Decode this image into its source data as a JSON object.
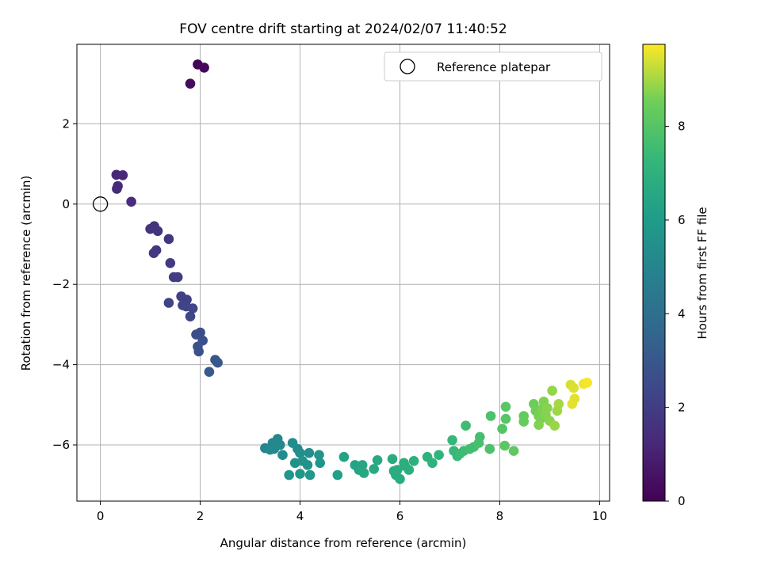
{
  "chart_data": {
    "type": "scatter",
    "title": "FOV centre drift starting at 2024/02/07 11:40:52",
    "xlabel": "Angular distance from reference (arcmin)",
    "ylabel": "Rotation from reference (arcmin)",
    "xlim": [
      -0.47,
      10.2
    ],
    "ylim": [
      -7.4,
      3.98
    ],
    "xticks": [
      0,
      2,
      4,
      6,
      8,
      10
    ],
    "xtick_labels": [
      "0",
      "2",
      "4",
      "6",
      "8",
      "10"
    ],
    "yticks": [
      2,
      0,
      -2,
      -4,
      -6
    ],
    "ytick_labels": [
      "2",
      "0",
      "−2",
      "−4",
      "−6"
    ],
    "grid": true,
    "legend": {
      "placement": "top-right",
      "entry": "Reference platepar"
    },
    "reference_point": {
      "x": 0,
      "y": 0
    },
    "colorbar": {
      "label": "Hours from first FF file",
      "range": [
        0,
        9.75
      ],
      "ticks": [
        0,
        2,
        4,
        6,
        8
      ],
      "tick_labels": [
        "0",
        "2",
        "4",
        "6",
        "8"
      ],
      "colormap": "viridis"
    },
    "points": [
      [
        1.95,
        3.48,
        0.1
      ],
      [
        2.08,
        3.4,
        0.2
      ],
      [
        1.8,
        3.0,
        0.3
      ],
      [
        0.32,
        0.73,
        1.2
      ],
      [
        0.45,
        0.72,
        1.25
      ],
      [
        0.35,
        0.45,
        1.3
      ],
      [
        0.33,
        0.38,
        1.32
      ],
      [
        0.62,
        0.06,
        1.4
      ],
      [
        1.08,
        -0.55,
        1.6
      ],
      [
        1.0,
        -0.62,
        1.62
      ],
      [
        1.15,
        -0.67,
        1.65
      ],
      [
        1.37,
        -0.87,
        1.7
      ],
      [
        1.12,
        -1.15,
        1.75
      ],
      [
        1.07,
        -1.22,
        1.78
      ],
      [
        1.4,
        -1.47,
        1.9
      ],
      [
        1.47,
        -1.82,
        1.95
      ],
      [
        1.55,
        -1.82,
        2.0
      ],
      [
        1.62,
        -2.3,
        2.1
      ],
      [
        1.73,
        -2.38,
        2.15
      ],
      [
        1.65,
        -2.52,
        2.2
      ],
      [
        1.37,
        -2.46,
        2.25
      ],
      [
        1.72,
        -2.55,
        2.3
      ],
      [
        1.85,
        -2.6,
        2.35
      ],
      [
        1.8,
        -2.8,
        2.4
      ],
      [
        1.92,
        -3.25,
        2.6
      ],
      [
        2.0,
        -3.2,
        2.65
      ],
      [
        2.05,
        -3.4,
        2.7
      ],
      [
        1.95,
        -3.55,
        2.75
      ],
      [
        1.97,
        -3.67,
        2.8
      ],
      [
        2.3,
        -3.88,
        2.95
      ],
      [
        2.35,
        -3.95,
        3.0
      ],
      [
        2.18,
        -4.18,
        3.05
      ],
      [
        3.3,
        -6.08,
        5.0
      ],
      [
        3.45,
        -5.95,
        5.05
      ],
      [
        3.55,
        -5.85,
        5.1
      ],
      [
        3.6,
        -6.0,
        5.15
      ],
      [
        3.4,
        -6.12,
        5.15
      ],
      [
        3.48,
        -6.1,
        5.2
      ],
      [
        3.65,
        -6.25,
        5.25
      ],
      [
        3.85,
        -5.95,
        5.3
      ],
      [
        3.95,
        -6.1,
        5.35
      ],
      [
        4.0,
        -6.2,
        5.4
      ],
      [
        4.18,
        -6.2,
        5.45
      ],
      [
        3.9,
        -6.45,
        5.5
      ],
      [
        4.05,
        -6.4,
        5.55
      ],
      [
        4.15,
        -6.5,
        5.6
      ],
      [
        4.38,
        -6.25,
        5.65
      ],
      [
        4.4,
        -6.45,
        5.7
      ],
      [
        3.78,
        -6.75,
        5.75
      ],
      [
        4.0,
        -6.72,
        5.8
      ],
      [
        4.2,
        -6.75,
        5.85
      ],
      [
        4.75,
        -6.75,
        6.2
      ],
      [
        4.88,
        -6.3,
        6.3
      ],
      [
        5.1,
        -6.5,
        6.4
      ],
      [
        5.18,
        -6.62,
        6.45
      ],
      [
        5.25,
        -6.5,
        6.5
      ],
      [
        5.28,
        -6.7,
        6.55
      ],
      [
        5.48,
        -6.6,
        6.6
      ],
      [
        5.55,
        -6.38,
        6.65
      ],
      [
        5.85,
        -6.35,
        6.7
      ],
      [
        5.88,
        -6.65,
        6.72
      ],
      [
        5.92,
        -6.75,
        6.75
      ],
      [
        6.0,
        -6.85,
        6.78
      ],
      [
        5.95,
        -6.62,
        6.8
      ],
      [
        6.08,
        -6.45,
        6.82
      ],
      [
        6.1,
        -6.52,
        6.85
      ],
      [
        6.18,
        -6.62,
        6.88
      ],
      [
        6.28,
        -6.4,
        6.9
      ],
      [
        6.55,
        -6.3,
        7.0
      ],
      [
        6.65,
        -6.45,
        7.05
      ],
      [
        6.78,
        -6.25,
        7.1
      ],
      [
        7.05,
        -5.88,
        7.3
      ],
      [
        7.08,
        -6.15,
        7.35
      ],
      [
        7.15,
        -6.28,
        7.4
      ],
      [
        7.2,
        -6.22,
        7.45
      ],
      [
        7.28,
        -6.15,
        7.5
      ],
      [
        7.32,
        -5.52,
        7.55
      ],
      [
        7.4,
        -6.1,
        7.6
      ],
      [
        7.48,
        -6.05,
        7.65
      ],
      [
        7.6,
        -5.8,
        7.7
      ],
      [
        7.58,
        -5.95,
        7.72
      ],
      [
        7.8,
        -6.1,
        7.8
      ],
      [
        7.82,
        -5.28,
        7.85
      ],
      [
        8.05,
        -5.6,
        8.0
      ],
      [
        8.12,
        -5.35,
        8.05
      ],
      [
        8.12,
        -5.05,
        8.1
      ],
      [
        8.1,
        -6.02,
        8.15
      ],
      [
        8.28,
        -6.15,
        8.2
      ],
      [
        8.48,
        -5.28,
        8.3
      ],
      [
        8.48,
        -5.42,
        8.35
      ],
      [
        8.68,
        -4.98,
        8.5
      ],
      [
        8.72,
        -5.15,
        8.55
      ],
      [
        8.78,
        -5.28,
        8.6
      ],
      [
        8.82,
        -5.35,
        8.62
      ],
      [
        8.85,
        -5.1,
        8.65
      ],
      [
        8.88,
        -4.92,
        8.68
      ],
      [
        8.78,
        -5.5,
        8.7
      ],
      [
        8.92,
        -5.25,
        8.72
      ],
      [
        8.95,
        -5.08,
        8.75
      ],
      [
        9.0,
        -5.4,
        8.78
      ],
      [
        9.05,
        -4.65,
        8.85
      ],
      [
        9.1,
        -5.52,
        8.9
      ],
      [
        9.15,
        -5.15,
        8.95
      ],
      [
        9.18,
        -4.98,
        9.0
      ],
      [
        9.42,
        -4.5,
        9.4
      ],
      [
        9.48,
        -4.58,
        9.45
      ],
      [
        9.5,
        -4.85,
        9.5
      ],
      [
        9.45,
        -4.98,
        9.52
      ],
      [
        9.68,
        -4.48,
        9.65
      ],
      [
        9.75,
        -4.45,
        9.7
      ]
    ]
  }
}
